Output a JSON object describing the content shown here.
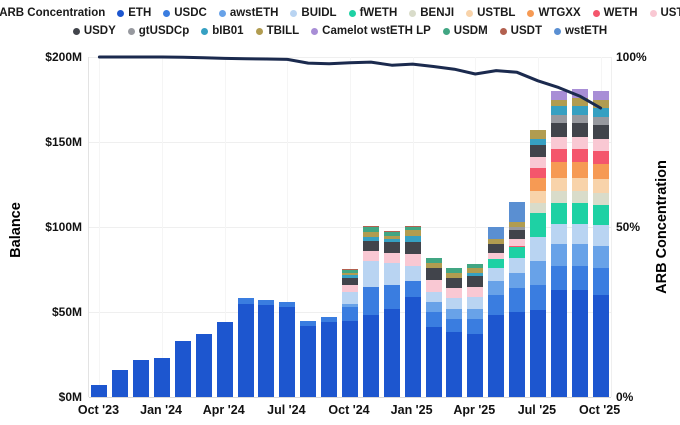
{
  "legend": {
    "rows": [
      [
        {
          "label": "ARB Concentration",
          "color": "#1b2a4e"
        },
        {
          "label": "ETH",
          "color": "#1d56cf"
        },
        {
          "label": "USDC",
          "color": "#3a7de0"
        },
        {
          "label": "awstETH",
          "color": "#68a2e8"
        },
        {
          "label": "BUIDL",
          "color": "#b9d4f2"
        },
        {
          "label": "fWETH",
          "color": "#1ed1a4"
        },
        {
          "label": "BENJI",
          "color": "#d9dcca"
        },
        {
          "label": "USTBL",
          "color": "#f8d3aa"
        },
        {
          "label": "WTGXX",
          "color": "#f69a54"
        },
        {
          "label": "WETH",
          "color": "#f4566c"
        },
        {
          "label": "USTB",
          "color": "#f9c8d3"
        }
      ],
      [
        {
          "label": "USDY",
          "color": "#41444b"
        },
        {
          "label": "gtUSDCp",
          "color": "#97999f"
        },
        {
          "label": "bIB01",
          "color": "#36a0c2"
        },
        {
          "label": "TBILL",
          "color": "#b19c50"
        },
        {
          "label": "Camelot wstETH LP",
          "color": "#a88ed6"
        },
        {
          "label": "USDM",
          "color": "#41a683"
        },
        {
          "label": "USDT",
          "color": "#b2604f"
        },
        {
          "label": "wstETH",
          "color": "#5a8fd2"
        }
      ]
    ]
  },
  "axes": {
    "left": {
      "title": "Balance",
      "tick_values": [
        0,
        50,
        100,
        150,
        200
      ],
      "tick_labels": [
        "$0M",
        "$50M",
        "$100M",
        "$150M",
        "$200M"
      ],
      "max": 200
    },
    "right": {
      "title": "ARB Concentration",
      "tick_values": [
        0,
        50,
        100
      ],
      "tick_labels": [
        "0%",
        "50%",
        "100%"
      ],
      "max": 100
    },
    "x": {
      "tick_labels": [
        "Oct '23",
        "Jan '24",
        "Apr '24",
        "Jul '24",
        "Oct '24",
        "Jan '25",
        "Apr '25",
        "Jul '25",
        "Oct '25"
      ],
      "tick_every": 3
    }
  },
  "chart_data": {
    "type": "bar",
    "subtype": "stacked-bars-with-line-overlay",
    "title": "",
    "xlabel": "",
    "ylabel_left": "Balance",
    "ylabel_right": "ARB Concentration",
    "ylim_left": [
      0,
      200000000
    ],
    "ylim_right_pct": [
      0,
      100
    ],
    "unit": "USD millions",
    "grid": "horizontal-faint",
    "legend_position": "top",
    "categories": [
      "Oct '23",
      "Nov '23",
      "Dec '23",
      "Jan '24",
      "Feb '24",
      "Mar '24",
      "Apr '24",
      "May '24",
      "Jun '24",
      "Jul '24",
      "Aug '24",
      "Sep '24",
      "Oct '24",
      "Nov '24",
      "Dec '24",
      "Jan '25",
      "Feb '25",
      "Mar '25",
      "Apr '25",
      "May '25",
      "Jun '25",
      "Jul '25",
      "Aug '25",
      "Sep '25",
      "Oct '25"
    ],
    "series": [
      {
        "name": "ETH",
        "color": "#1d56cf",
        "values": [
          7,
          16,
          22,
          23,
          33,
          37,
          44,
          55,
          54,
          53,
          42,
          44,
          45,
          48,
          52,
          59,
          41,
          38,
          37,
          48,
          50,
          51,
          63,
          63,
          60
        ]
      },
      {
        "name": "USDC",
        "color": "#3a7de0",
        "values": [
          0,
          0,
          0,
          0,
          0,
          0,
          0,
          3,
          3,
          3,
          3,
          3,
          8,
          17,
          14,
          9,
          9,
          8,
          9,
          12,
          14,
          15,
          14,
          14,
          16
        ]
      },
      {
        "name": "awstETH",
        "color": "#68a2e8",
        "values": [
          0,
          0,
          0,
          0,
          0,
          0,
          0,
          0,
          0,
          0,
          0,
          0,
          2,
          0,
          0,
          0,
          6,
          6,
          6,
          8,
          9,
          14,
          13,
          13,
          13
        ]
      },
      {
        "name": "BUIDL",
        "color": "#b9d4f2",
        "values": [
          0,
          0,
          0,
          0,
          0,
          0,
          0,
          0,
          0,
          0,
          0,
          0,
          7,
          15,
          13,
          9,
          6,
          6,
          7,
          8,
          9,
          14,
          12,
          12,
          12
        ]
      },
      {
        "name": "fWETH",
        "color": "#1ed1a4",
        "values": [
          0,
          0,
          0,
          0,
          0,
          0,
          0,
          0,
          0,
          0,
          0,
          0,
          0,
          0,
          0,
          0,
          0,
          0,
          0,
          5,
          6,
          14,
          12,
          12,
          12
        ]
      },
      {
        "name": "BENJI",
        "color": "#d9dcca",
        "values": [
          0,
          0,
          0,
          0,
          0,
          0,
          0,
          0,
          0,
          0,
          0,
          0,
          0,
          0,
          0,
          0,
          0,
          0,
          0,
          0,
          0,
          6,
          7,
          7,
          7
        ]
      },
      {
        "name": "USTBL",
        "color": "#f8d3aa",
        "values": [
          0,
          0,
          0,
          0,
          0,
          0,
          0,
          0,
          0,
          0,
          0,
          0,
          0,
          0,
          0,
          0,
          0,
          0,
          0,
          0,
          0,
          7,
          8,
          8,
          8
        ]
      },
      {
        "name": "WTGXX",
        "color": "#f69a54",
        "values": [
          0,
          0,
          0,
          0,
          0,
          0,
          0,
          0,
          0,
          0,
          0,
          0,
          0,
          0,
          0,
          0,
          0,
          0,
          0,
          0,
          0,
          8,
          9,
          9,
          9
        ]
      },
      {
        "name": "WETH",
        "color": "#f4566c",
        "values": [
          0,
          0,
          0,
          0,
          0,
          0,
          0,
          0,
          0,
          0,
          0,
          0,
          0,
          0,
          0,
          0,
          0,
          0,
          0,
          0,
          1,
          6,
          8,
          8,
          8
        ]
      },
      {
        "name": "USTB",
        "color": "#f9c8d3",
        "values": [
          0,
          0,
          0,
          0,
          0,
          0,
          0,
          0,
          0,
          0,
          0,
          0,
          4,
          6,
          6,
          7,
          7,
          6,
          6,
          4,
          4,
          6,
          7,
          7,
          7
        ]
      },
      {
        "name": "USDY",
        "color": "#41444b",
        "values": [
          0,
          0,
          0,
          0,
          0,
          0,
          0,
          0,
          0,
          0,
          0,
          0,
          4,
          6,
          6,
          7,
          7,
          6,
          6,
          5,
          5,
          7,
          8,
          8,
          8
        ]
      },
      {
        "name": "gtUSDCp",
        "color": "#97999f",
        "values": [
          0,
          0,
          0,
          0,
          0,
          0,
          0,
          0,
          0,
          0,
          0,
          0,
          0,
          0,
          0,
          0,
          0,
          0,
          0,
          0,
          2,
          0,
          5,
          5,
          5
        ]
      },
      {
        "name": "bIB01",
        "color": "#36a0c2",
        "values": [
          0,
          0,
          0,
          0,
          0,
          0,
          0,
          0,
          0,
          0,
          0,
          0,
          1.5,
          2,
          2,
          4,
          0,
          0,
          2,
          0,
          0,
          4,
          5,
          5,
          5
        ]
      },
      {
        "name": "TBILL",
        "color": "#b19c50",
        "values": [
          0,
          0,
          0,
          0,
          0,
          0,
          0,
          0,
          0,
          0,
          0,
          0,
          1.5,
          3,
          2,
          3,
          3,
          3,
          3,
          3,
          3,
          5,
          4,
          5,
          5
        ]
      },
      {
        "name": "Camelot wstETH LP",
        "color": "#a88ed6",
        "values": [
          0,
          0,
          0,
          0,
          0,
          0,
          0,
          0,
          0,
          0,
          0,
          0,
          0,
          0,
          0,
          0,
          0,
          0,
          0,
          0,
          0,
          0,
          5,
          5,
          5
        ]
      },
      {
        "name": "USDM",
        "color": "#41a683",
        "values": [
          0,
          0,
          0,
          0,
          0,
          0,
          0,
          0,
          0,
          0,
          0,
          0,
          2,
          3,
          2,
          2,
          3,
          3,
          2,
          0,
          0,
          0,
          0,
          0,
          0
        ]
      },
      {
        "name": "USDT",
        "color": "#b2604f",
        "values": [
          0,
          0,
          0,
          0,
          0,
          0,
          0,
          0,
          0,
          0,
          0,
          0,
          0.5,
          0.5,
          0.5,
          0.5,
          0,
          0,
          0,
          0,
          0,
          0,
          0,
          0,
          0
        ]
      },
      {
        "name": "wstETH",
        "color": "#5a8fd2",
        "values": [
          0,
          0,
          0,
          0,
          0,
          0,
          0,
          0,
          0,
          0,
          0,
          0,
          0,
          0,
          0,
          0,
          0,
          0,
          0,
          7,
          12,
          0,
          0,
          0,
          0
        ]
      }
    ],
    "line": {
      "name": "ARB Concentration",
      "color": "#1b2a4e",
      "axis": "right",
      "values_pct": [
        100,
        100,
        100,
        100,
        99.9,
        99.8,
        99.6,
        99.5,
        99.4,
        99.3,
        98.2,
        98.0,
        98.3,
        98.5,
        97.6,
        97.9,
        97.2,
        96.4,
        95.0,
        96.0,
        95.5,
        93.0,
        91.0,
        88.5,
        85.0
      ]
    }
  }
}
